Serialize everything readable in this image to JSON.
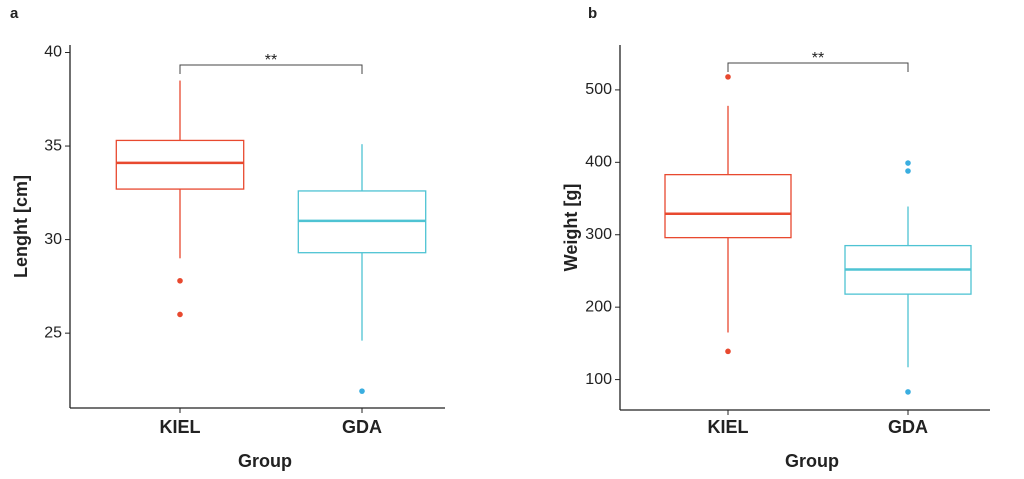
{
  "chart_data": [
    {
      "type": "box",
      "panel": "a",
      "ylabel": "Lenght [cm]",
      "xlabel": "Group",
      "annotation": "**",
      "categories": [
        "KIEL",
        "GDA"
      ],
      "boxes": [
        {
          "color": "#e8492f",
          "outlier_color": "#e8492f",
          "low": 29.0,
          "q1": 32.7,
          "median": 34.1,
          "q3": 35.3,
          "high": 38.5,
          "outliers": [
            27.8,
            26.0
          ]
        },
        {
          "color": "#4ec3d3",
          "outlier_color": "#3aaee0",
          "low": 24.6,
          "q1": 29.3,
          "median": 31.0,
          "q3": 32.6,
          "high": 35.1,
          "outliers": [
            21.9
          ]
        }
      ],
      "ylim": [
        21,
        40.4
      ],
      "yticks": [
        25,
        30,
        35,
        40
      ]
    },
    {
      "type": "box",
      "panel": "b",
      "ylabel": "Weight [g]",
      "xlabel": "Group",
      "annotation": "**",
      "categories": [
        "KIEL",
        "GDA"
      ],
      "boxes": [
        {
          "color": "#e8492f",
          "outlier_color": "#e8492f",
          "low": 165,
          "q1": 296,
          "median": 329,
          "q3": 383,
          "high": 478,
          "outliers": [
            518,
            139
          ]
        },
        {
          "color": "#4ec3d3",
          "outlier_color": "#3aaee0",
          "low": 117,
          "q1": 218,
          "median": 252,
          "q3": 285,
          "high": 339,
          "outliers": [
            399,
            388,
            83
          ]
        }
      ],
      "ylim": [
        58,
        562
      ],
      "yticks": [
        100,
        200,
        300,
        400,
        500
      ]
    }
  ]
}
